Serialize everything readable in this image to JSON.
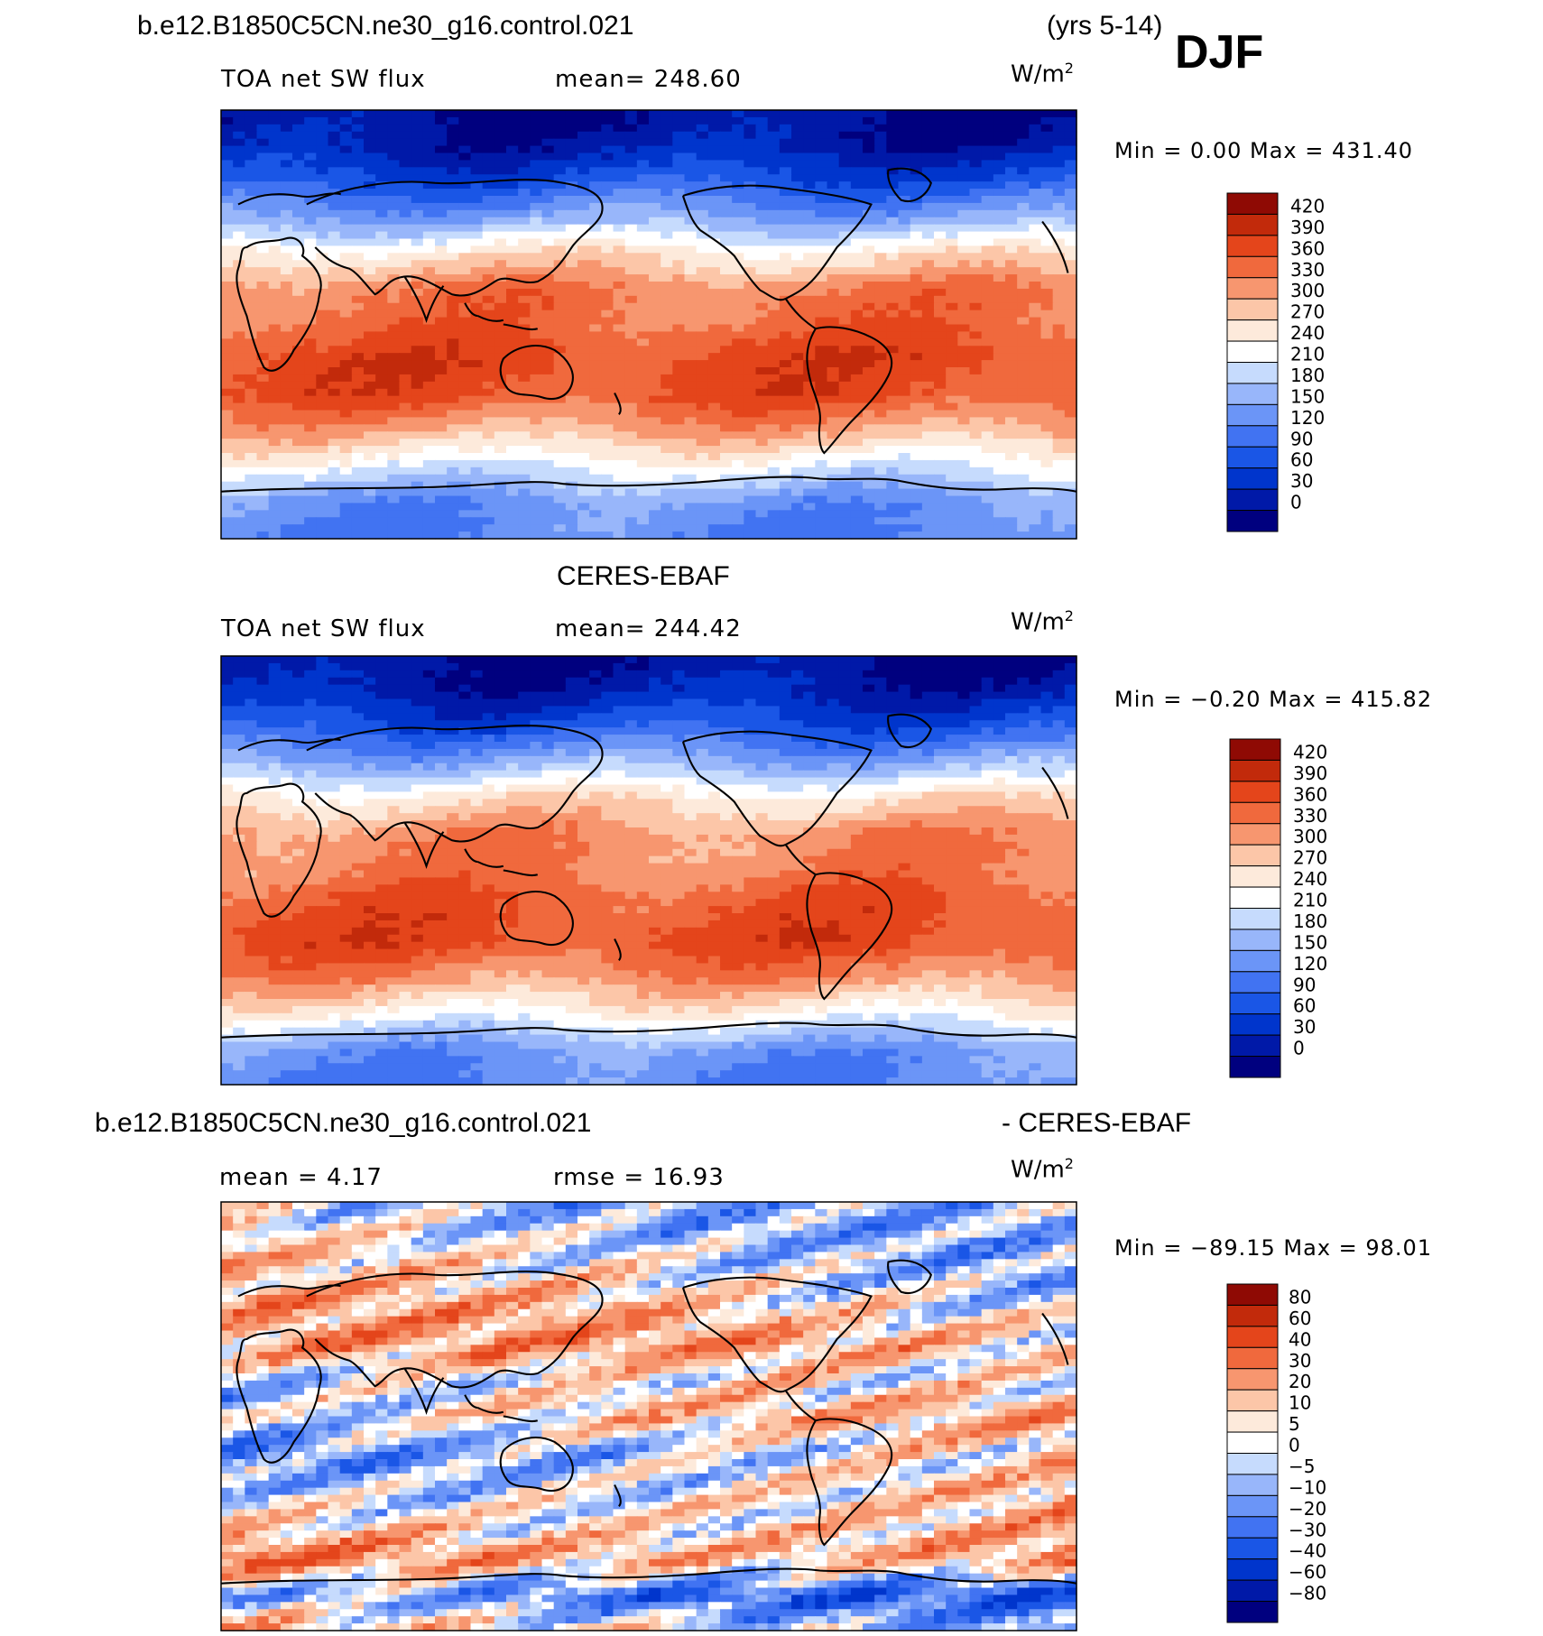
{
  "header": {
    "case_name": "b.e12.B1850C5CN.ne30_g16.control.021",
    "years": "(yrs 5-14)",
    "season": "DJF"
  },
  "panels": [
    {
      "title": "",
      "variable": "TOA net SW flux",
      "stat_text": "mean=  248.60",
      "units": "W/m",
      "units_sup": "2",
      "minmax_text": "Min =    0.00 Max = 431.40"
    },
    {
      "title": "CERES-EBAF",
      "variable": "TOA net SW flux",
      "stat_text": "mean=  244.42",
      "units": "W/m",
      "units_sup": "2",
      "minmax_text": "Min =  −0.20 Max = 415.82"
    },
    {
      "title_left": "b.e12.B1850C5CN.ne30_g16.control.021",
      "title_right": "- CERES-EBAF",
      "variable": "mean =    4.17",
      "stat_text": "rmse =   16.93",
      "units": "W/m",
      "units_sup": "2",
      "minmax_text": "Min = −89.15 Max =  98.01"
    }
  ],
  "chart_data": [
    {
      "type": "heatmap",
      "title": "b.e12.B1850C5CN.ne30_g16.control.021 (yrs 5-14) DJF",
      "variable": "TOA net SW flux",
      "units": "W/m2",
      "mean": 248.6,
      "min": 0.0,
      "max": 431.4,
      "colorbar_levels": [
        "0",
        "30",
        "60",
        "90",
        "120",
        "150",
        "180",
        "210",
        "240",
        "270",
        "300",
        "330",
        "360",
        "390",
        "420"
      ],
      "colorbar_colors": [
        "#00007f",
        "#0019a8",
        "#0035cc",
        "#1a56e6",
        "#4173f2",
        "#6b95f7",
        "#98b6fa",
        "#c6dbfd",
        "#ffffff",
        "#fdeadb",
        "#fcc6a8",
        "#f7966f",
        "#f0693d",
        "#e4451b",
        "#c22a0b",
        "#8f0a04"
      ],
      "zonal_profile": [
        {
          "lat": 90,
          "value": 0
        },
        {
          "lat": 75,
          "value": 15
        },
        {
          "lat": 60,
          "value": 70
        },
        {
          "lat": 45,
          "value": 150
        },
        {
          "lat": 30,
          "value": 255
        },
        {
          "lat": 15,
          "value": 330
        },
        {
          "lat": 0,
          "value": 345
        },
        {
          "lat": -15,
          "value": 375
        },
        {
          "lat": -30,
          "value": 365
        },
        {
          "lat": -45,
          "value": 300
        },
        {
          "lat": -60,
          "value": 215
        },
        {
          "lat": -75,
          "value": 135
        },
        {
          "lat": -90,
          "value": 120
        }
      ]
    },
    {
      "type": "heatmap",
      "title": "CERES-EBAF",
      "variable": "TOA net SW flux",
      "units": "W/m2",
      "mean": 244.42,
      "min": -0.2,
      "max": 415.82,
      "colorbar_levels": [
        "0",
        "30",
        "60",
        "90",
        "120",
        "150",
        "180",
        "210",
        "240",
        "270",
        "300",
        "330",
        "360",
        "390",
        "420"
      ],
      "colorbar_colors": [
        "#00007f",
        "#0019a8",
        "#0035cc",
        "#1a56e6",
        "#4173f2",
        "#6b95f7",
        "#98b6fa",
        "#c6dbfd",
        "#ffffff",
        "#fdeadb",
        "#fcc6a8",
        "#f7966f",
        "#f0693d",
        "#e4451b",
        "#c22a0b",
        "#8f0a04"
      ],
      "zonal_profile": [
        {
          "lat": 90,
          "value": 0
        },
        {
          "lat": 75,
          "value": 20
        },
        {
          "lat": 60,
          "value": 75
        },
        {
          "lat": 45,
          "value": 160
        },
        {
          "lat": 30,
          "value": 260
        },
        {
          "lat": 15,
          "value": 320
        },
        {
          "lat": 0,
          "value": 330
        },
        {
          "lat": -15,
          "value": 360
        },
        {
          "lat": -30,
          "value": 370
        },
        {
          "lat": -45,
          "value": 320
        },
        {
          "lat": -60,
          "value": 240
        },
        {
          "lat": -75,
          "value": 140
        },
        {
          "lat": -90,
          "value": 120
        }
      ]
    },
    {
      "type": "heatmap",
      "title": "b.e12.B1850C5CN.ne30_g16.control.021 - CERES-EBAF",
      "units": "W/m2",
      "mean": 4.17,
      "rmse": 16.93,
      "min": -89.15,
      "max": 98.01,
      "colorbar_levels": [
        "−80",
        "−60",
        "−40",
        "−30",
        "−20",
        "−10",
        "−5",
        "0",
        "5",
        "10",
        "20",
        "30",
        "40",
        "60",
        "80"
      ],
      "colorbar_colors": [
        "#00007f",
        "#0019a8",
        "#0035cc",
        "#1a56e6",
        "#4173f2",
        "#6b95f7",
        "#98b6fa",
        "#c6dbfd",
        "#ffffff",
        "#fdeadb",
        "#fcc6a8",
        "#f7966f",
        "#f0693d",
        "#e4451b",
        "#c22a0b",
        "#8f0a04"
      ],
      "zonal_profile": [
        {
          "lat": 90,
          "value": 2
        },
        {
          "lat": 75,
          "value": 3
        },
        {
          "lat": 60,
          "value": 5
        },
        {
          "lat": 45,
          "value": 8
        },
        {
          "lat": 30,
          "value": 12
        },
        {
          "lat": 15,
          "value": -8
        },
        {
          "lat": 0,
          "value": 6
        },
        {
          "lat": -15,
          "value": -5
        },
        {
          "lat": -30,
          "value": 10
        },
        {
          "lat": -45,
          "value": 22
        },
        {
          "lat": -60,
          "value": 35
        },
        {
          "lat": -75,
          "value": -20
        },
        {
          "lat": -90,
          "value": 2
        }
      ]
    }
  ]
}
